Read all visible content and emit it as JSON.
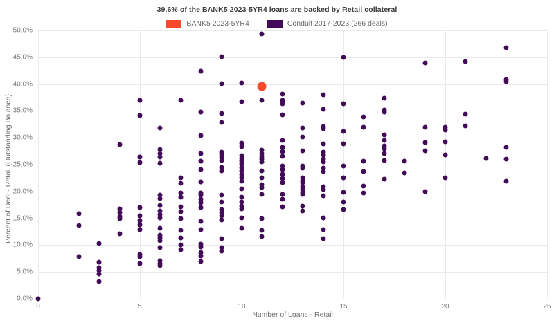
{
  "chart_data": {
    "type": "scatter",
    "title": "39.6% of the BANK5 2023-5YR4 loans are backed by Retail collateral",
    "xlabel": "Number of Loans - Retail",
    "ylabel": "Percent of Deal - Retail (Outstanding Balance)",
    "xlim": [
      0,
      25
    ],
    "ylim": [
      0,
      50
    ],
    "grid": true,
    "legend_position": "top-center",
    "x_ticks": [
      0,
      5,
      10,
      15,
      20,
      25
    ],
    "x_tick_labels": [
      "0",
      "5",
      "10",
      "15",
      "20",
      "25"
    ],
    "y_ticks": [
      0,
      5,
      10,
      15,
      20,
      25,
      30,
      35,
      40,
      45,
      50
    ],
    "y_tick_labels": [
      "0.0%",
      "5.0%",
      "10.0%",
      "15.0%",
      "20.0%",
      "25.0%",
      "30.0%",
      "35.0%",
      "40.0%",
      "45.0%",
      "50.0%"
    ],
    "colors": {
      "bank5_orange": "#f54a2b",
      "conduit_purple": "#420b57",
      "grid": "#eaeaed",
      "tick_text": "#7c7c80",
      "title_text": "#3c3c40"
    },
    "series": [
      {
        "name": "BANK5 2023-5YR4",
        "color": "#f54a2b",
        "marker_size": 13,
        "points": [
          [
            11,
            39.6
          ]
        ]
      },
      {
        "name": "Conduit 2017-2023 (266 deals)",
        "color": "#420b57",
        "marker_size": 7,
        "points": [
          [
            0,
            0.0
          ],
          [
            2,
            15.9
          ],
          [
            2,
            13.7
          ],
          [
            2,
            7.9
          ],
          [
            3,
            10.3
          ],
          [
            3,
            6.8
          ],
          [
            3,
            5.8
          ],
          [
            3,
            5.3
          ],
          [
            3,
            4.6
          ],
          [
            3,
            3.2
          ],
          [
            4,
            28.7
          ],
          [
            4,
            16.7
          ],
          [
            4,
            16.1
          ],
          [
            4,
            15.3
          ],
          [
            4,
            14.9
          ],
          [
            4,
            12.1
          ],
          [
            5,
            37.0
          ],
          [
            5,
            34.2
          ],
          [
            5,
            26.4
          ],
          [
            5,
            25.4
          ],
          [
            5,
            17.0
          ],
          [
            5,
            15.5
          ],
          [
            5,
            14.6
          ],
          [
            5,
            13.8
          ],
          [
            5,
            12.9
          ],
          [
            5,
            8.2
          ],
          [
            5,
            7.8
          ],
          [
            5,
            6.6
          ],
          [
            6,
            31.8
          ],
          [
            6,
            27.8
          ],
          [
            6,
            27.1
          ],
          [
            6,
            26.4
          ],
          [
            6,
            25.2
          ],
          [
            6,
            19.3
          ],
          [
            6,
            18.7
          ],
          [
            6,
            17.4
          ],
          [
            6,
            16.4
          ],
          [
            6,
            15.7
          ],
          [
            6,
            15.1
          ],
          [
            6,
            13.1
          ],
          [
            6,
            11.9
          ],
          [
            6,
            11.4
          ],
          [
            6,
            10.8
          ],
          [
            6,
            9.5
          ],
          [
            6,
            7.1
          ],
          [
            6,
            6.6
          ],
          [
            6,
            6.2
          ],
          [
            7,
            37.0
          ],
          [
            7,
            22.6
          ],
          [
            7,
            21.5
          ],
          [
            7,
            19.7
          ],
          [
            7,
            18.9
          ],
          [
            7,
            17.2
          ],
          [
            7,
            16.2
          ],
          [
            7,
            14.9
          ],
          [
            7,
            12.7
          ],
          [
            7,
            11.4
          ],
          [
            7,
            10.1
          ],
          [
            7,
            9.1
          ],
          [
            8,
            42.4
          ],
          [
            8,
            34.8
          ],
          [
            8,
            30.4
          ],
          [
            8,
            27.1
          ],
          [
            8,
            25.6
          ],
          [
            8,
            24.1
          ],
          [
            8,
            21.8
          ],
          [
            8,
            19.7
          ],
          [
            8,
            19.3
          ],
          [
            8,
            18.6
          ],
          [
            8,
            17.9
          ],
          [
            8,
            17.0
          ],
          [
            8,
            14.4
          ],
          [
            8,
            12.9
          ],
          [
            8,
            10.2
          ],
          [
            8,
            9.7
          ],
          [
            8,
            8.6
          ],
          [
            8,
            8.0
          ],
          [
            8,
            7.0
          ],
          [
            9,
            45.1
          ],
          [
            9,
            40.1
          ],
          [
            9,
            34.5
          ],
          [
            9,
            32.8
          ],
          [
            9,
            27.3
          ],
          [
            9,
            26.9
          ],
          [
            9,
            26.3
          ],
          [
            9,
            25.8
          ],
          [
            9,
            24.5
          ],
          [
            9,
            23.9
          ],
          [
            9,
            19.3
          ],
          [
            9,
            18.1
          ],
          [
            9,
            16.6
          ],
          [
            9,
            16.1
          ],
          [
            9,
            15.5
          ],
          [
            9,
            14.7
          ],
          [
            9,
            11.2
          ],
          [
            9,
            9.5
          ],
          [
            9,
            8.9
          ],
          [
            10,
            40.2
          ],
          [
            10,
            36.7
          ],
          [
            10,
            29.0
          ],
          [
            10,
            28.4
          ],
          [
            10,
            26.7
          ],
          [
            10,
            26.2
          ],
          [
            10,
            25.7
          ],
          [
            10,
            25.1
          ],
          [
            10,
            24.5
          ],
          [
            10,
            23.8
          ],
          [
            10,
            23.2
          ],
          [
            10,
            22.6
          ],
          [
            10,
            21.9
          ],
          [
            10,
            20.5
          ],
          [
            10,
            18.9
          ],
          [
            10,
            18.1
          ],
          [
            10,
            17.3
          ],
          [
            10,
            16.8
          ],
          [
            10,
            15.1
          ],
          [
            10,
            13.1
          ],
          [
            11,
            49.3
          ],
          [
            11,
            37.0
          ],
          [
            11,
            27.7
          ],
          [
            11,
            27.1
          ],
          [
            11,
            26.6
          ],
          [
            11,
            26.0
          ],
          [
            11,
            25.5
          ],
          [
            11,
            23.9
          ],
          [
            11,
            22.5
          ],
          [
            11,
            21.3
          ],
          [
            11,
            20.8
          ],
          [
            11,
            19.5
          ],
          [
            11,
            14.9
          ],
          [
            11,
            12.7
          ],
          [
            11,
            11.6
          ],
          [
            12,
            38.1
          ],
          [
            12,
            37.0
          ],
          [
            12,
            36.3
          ],
          [
            12,
            34.3
          ],
          [
            12,
            29.5
          ],
          [
            12,
            28.2
          ],
          [
            12,
            27.4
          ],
          [
            12,
            26.5
          ],
          [
            12,
            24.8
          ],
          [
            12,
            24.1
          ],
          [
            12,
            23.2
          ],
          [
            12,
            22.4
          ],
          [
            12,
            21.6
          ],
          [
            12,
            19.4
          ],
          [
            12,
            18.5
          ],
          [
            12,
            17.2
          ],
          [
            13,
            36.5
          ],
          [
            13,
            31.8
          ],
          [
            13,
            30.2
          ],
          [
            13,
            27.6
          ],
          [
            13,
            24.7
          ],
          [
            13,
            24.3
          ],
          [
            13,
            22.5
          ],
          [
            13,
            22.0
          ],
          [
            13,
            21.6
          ],
          [
            13,
            20.9
          ],
          [
            13,
            20.4
          ],
          [
            13,
            19.9
          ],
          [
            13,
            19.4
          ],
          [
            13,
            17.3
          ],
          [
            13,
            16.4
          ],
          [
            14,
            38.0
          ],
          [
            14,
            35.3
          ],
          [
            14,
            32.1
          ],
          [
            14,
            31.7
          ],
          [
            14,
            28.9
          ],
          [
            14,
            27.3
          ],
          [
            14,
            26.8
          ],
          [
            14,
            26.0
          ],
          [
            14,
            25.5
          ],
          [
            14,
            24.4
          ],
          [
            14,
            23.7
          ],
          [
            14,
            20.9
          ],
          [
            14,
            20.4
          ],
          [
            14,
            19.2
          ],
          [
            14,
            15.1
          ],
          [
            14,
            12.9
          ],
          [
            14,
            11.2
          ],
          [
            15,
            45.0
          ],
          [
            15,
            36.3
          ],
          [
            15,
            31.2
          ],
          [
            15,
            28.9
          ],
          [
            15,
            24.7
          ],
          [
            15,
            22.6
          ],
          [
            15,
            19.8
          ],
          [
            15,
            18.0
          ],
          [
            15,
            16.6
          ],
          [
            16,
            33.9
          ],
          [
            16,
            32.0
          ],
          [
            16,
            25.6
          ],
          [
            16,
            23.7
          ],
          [
            16,
            21.0
          ],
          [
            16,
            19.7
          ],
          [
            17,
            37.4
          ],
          [
            17,
            35.2
          ],
          [
            17,
            34.8
          ],
          [
            17,
            30.5
          ],
          [
            17,
            29.5
          ],
          [
            17,
            28.5
          ],
          [
            17,
            28.0
          ],
          [
            17,
            27.1
          ],
          [
            17,
            25.8
          ],
          [
            17,
            22.3
          ],
          [
            18,
            25.6
          ],
          [
            18,
            23.5
          ],
          [
            19,
            44.0
          ],
          [
            19,
            31.9
          ],
          [
            19,
            29.1
          ],
          [
            19,
            27.6
          ],
          [
            19,
            20.0
          ],
          [
            20,
            32.0
          ],
          [
            20,
            31.4
          ],
          [
            20,
            29.2
          ],
          [
            20,
            26.8
          ],
          [
            20,
            22.6
          ],
          [
            21,
            44.2
          ],
          [
            21,
            34.4
          ],
          [
            21,
            32.2
          ],
          [
            22,
            26.2
          ],
          [
            23,
            46.8
          ],
          [
            23,
            40.9
          ],
          [
            23,
            40.5
          ],
          [
            23,
            28.2
          ],
          [
            23,
            26.0
          ],
          [
            23,
            21.9
          ]
        ]
      }
    ]
  }
}
